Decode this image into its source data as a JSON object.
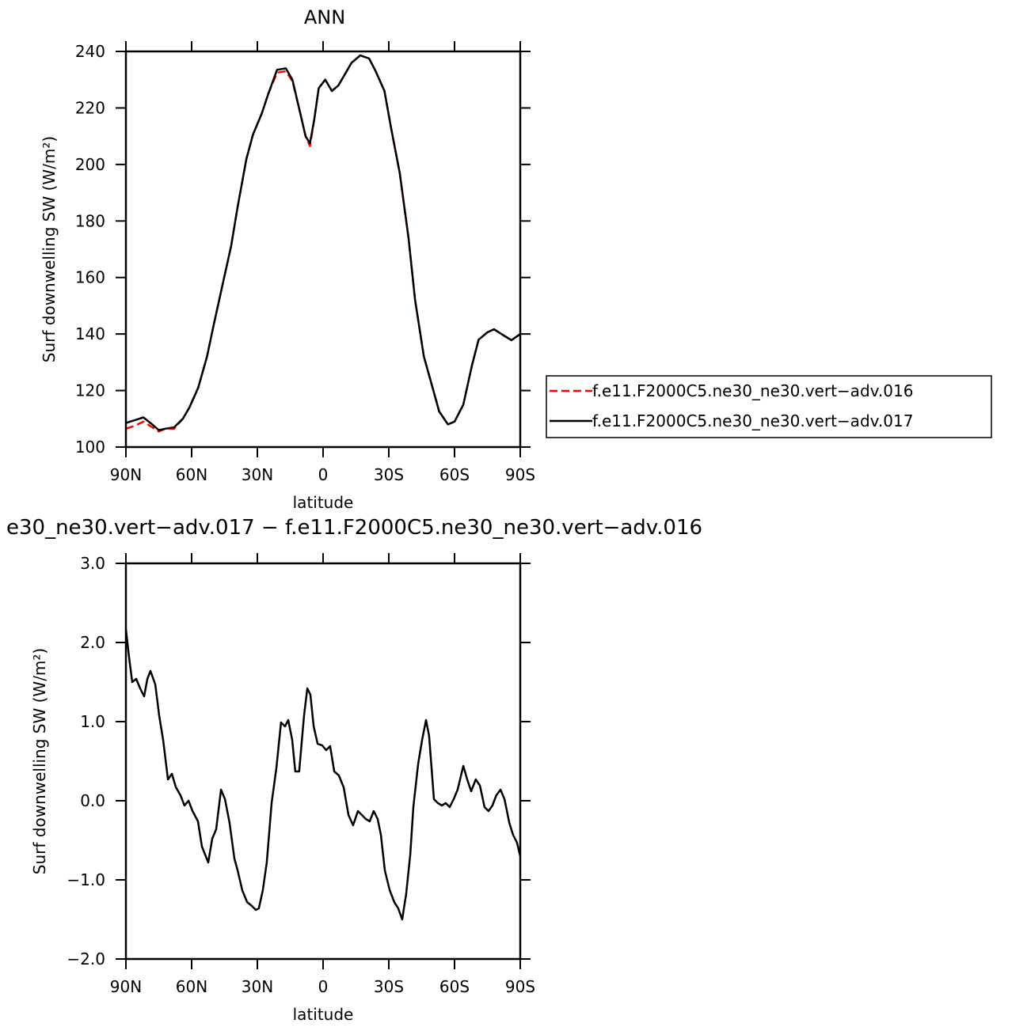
{
  "chart_data": [
    {
      "type": "line",
      "title": "ANN",
      "xlabel": "latitude",
      "ylabel": "Surf downwelling SW (W/m²)",
      "x": [
        90,
        86,
        82,
        78,
        75,
        72,
        68,
        64,
        61,
        57,
        53,
        50,
        46,
        42,
        39,
        35,
        32,
        28,
        25,
        21,
        17,
        14,
        11,
        8,
        6,
        4,
        2,
        -1,
        -4,
        -7,
        -10,
        -13,
        -17,
        -21,
        -24,
        -28,
        -31,
        -35,
        -39,
        -42,
        -46,
        -50,
        -53,
        -57,
        -60,
        -64,
        -68,
        -71,
        -75,
        -78,
        -82,
        -86,
        -90
      ],
      "series": [
        {
          "name": "f.e11.F2000C5.ne30_ne30.vert−adv.016",
          "color": "#ff0000",
          "dashed": true,
          "values": [
            106.5,
            107.5,
            109,
            107,
            105.5,
            106.5,
            106.5,
            110,
            114,
            121,
            132,
            143,
            157,
            171,
            185,
            202,
            210.6,
            218,
            225,
            232.5,
            233,
            229.5,
            220,
            210,
            206.5,
            216,
            227,
            230,
            226,
            228,
            232,
            236,
            238.6,
            237.5,
            233,
            226,
            213,
            197,
            174,
            152,
            132,
            121,
            112.6,
            108,
            109,
            115,
            129,
            138,
            140.6,
            141.7,
            139.7,
            137.8,
            140
          ]
        },
        {
          "name": "f.e11.F2000C5.ne30_ne30.vert−adv.017",
          "color": "#000000",
          "dashed": false,
          "values": [
            108.5,
            109.5,
            110.5,
            108,
            106,
            106.5,
            107,
            110,
            114,
            121,
            132,
            143,
            157,
            171,
            185,
            202,
            210.6,
            218,
            225,
            233.5,
            234,
            230,
            220,
            210,
            207.5,
            216,
            227,
            230,
            226,
            228,
            232,
            236,
            238.6,
            237.5,
            233,
            226,
            213,
            197,
            174,
            152,
            132,
            121,
            112.6,
            108,
            109,
            115,
            129,
            138,
            140.6,
            141.7,
            139.7,
            137.8,
            140
          ]
        }
      ],
      "xlim": [
        90,
        -90
      ],
      "xticks": [
        {
          "value": 90,
          "label": "90N"
        },
        {
          "value": 60,
          "label": "60N"
        },
        {
          "value": 30,
          "label": "30N"
        },
        0,
        {
          "value": -30,
          "label": "30S"
        },
        {
          "value": -60,
          "label": "60S"
        },
        {
          "value": -90,
          "label": "90S"
        }
      ],
      "ylim": [
        100,
        240
      ],
      "yticks": [
        100,
        120,
        140,
        160,
        180,
        200,
        220,
        240
      ],
      "legend": "right"
    },
    {
      "type": "line",
      "title": "e30_ne30.vert−adv.017 − f.e11.F2000C5.ne30_ne30.vert−adv.016",
      "xlabel": "latitude",
      "ylabel": "Surf downwelling SW (W/m²)",
      "x": [
        90,
        88.6,
        87.1,
        85.3,
        83.5,
        81.7,
        80.2,
        78.8,
        76.6,
        74.8,
        73.0,
        70.8,
        69.0,
        67.2,
        65.1,
        63.3,
        61.4,
        59.6,
        57.1,
        55.3,
        52.4,
        50.6,
        48.8,
        46.6,
        44.8,
        42.7,
        40.5,
        39.0,
        36.9,
        34.7,
        32.5,
        30.7,
        29.3,
        27.5,
        25.7,
        23.5,
        21.3,
        19.2,
        17.4,
        15.9,
        14.1,
        12.7,
        10.9,
        8.7,
        7.2,
        5.8,
        4.3,
        2.5,
        0.4,
        -1.4,
        -3.2,
        -5.1,
        -7.2,
        -9.4,
        -11.6,
        -13.7,
        -15.9,
        -17.7,
        -19.5,
        -21.3,
        -23.1,
        -24.9,
        -26.4,
        -28.2,
        -30.4,
        -32.5,
        -34.3,
        -36.1,
        -37.9,
        -39.8,
        -41.2,
        -43.4,
        -45.2,
        -47.0,
        -48.4,
        -50.6,
        -52.4,
        -54.2,
        -56.0,
        -57.8,
        -59.6,
        -61.4,
        -64.0,
        -65.8,
        -67.6,
        -69.7,
        -71.6,
        -73.7,
        -75.5,
        -77.3,
        -79.1,
        -81.0,
        -82.8,
        -85.0,
        -86.7,
        -88.5,
        -90
      ],
      "values": [
        2.17,
        1.82,
        1.5,
        1.54,
        1.42,
        1.32,
        1.54,
        1.64,
        1.47,
        1.07,
        0.77,
        0.27,
        0.34,
        0.17,
        0.07,
        -0.06,
        0,
        -0.13,
        -0.26,
        -0.58,
        -0.78,
        -0.48,
        -0.36,
        0.14,
        0.02,
        -0.28,
        -0.73,
        -0.88,
        -1.13,
        -1.28,
        -1.33,
        -1.38,
        -1.36,
        -1.13,
        -0.78,
        -0.03,
        0.42,
        0.99,
        0.94,
        1.02,
        0.77,
        0.37,
        0.37,
        1.07,
        1.42,
        1.34,
        0.94,
        0.72,
        0.7,
        0.64,
        0.69,
        0.37,
        0.32,
        0.17,
        -0.18,
        -0.31,
        -0.13,
        -0.18,
        -0.23,
        -0.26,
        -0.13,
        -0.23,
        -0.43,
        -0.88,
        -1.13,
        -1.28,
        -1.36,
        -1.5,
        -1.18,
        -0.68,
        -0.08,
        0.47,
        0.77,
        1.02,
        0.82,
        0.02,
        -0.03,
        -0.06,
        -0.03,
        -0.08,
        0.02,
        0.14,
        0.44,
        0.27,
        0.12,
        0.27,
        0.19,
        -0.08,
        -0.13,
        -0.06,
        0.07,
        0.14,
        0.02,
        -0.28,
        -0.43,
        -0.53,
        -0.7
      ],
      "color": "#000000",
      "xlim": [
        90,
        -90
      ],
      "xticks": [
        {
          "value": 90,
          "label": "90N"
        },
        {
          "value": 60,
          "label": "60N"
        },
        {
          "value": 30,
          "label": "30N"
        },
        0,
        {
          "value": -30,
          "label": "30S"
        },
        {
          "value": -60,
          "label": "60S"
        },
        {
          "value": -90,
          "label": "90S"
        }
      ],
      "ylim": [
        -2,
        3
      ],
      "yticks": [
        {
          "value": -2,
          "label": "−2.0"
        },
        {
          "value": -1,
          "label": "−1.0"
        },
        {
          "value": 0,
          "label": "0.0"
        },
        {
          "value": 1,
          "label": "1.0"
        },
        {
          "value": 2,
          "label": "2.0"
        },
        {
          "value": 3,
          "label": "3.0"
        }
      ]
    }
  ]
}
